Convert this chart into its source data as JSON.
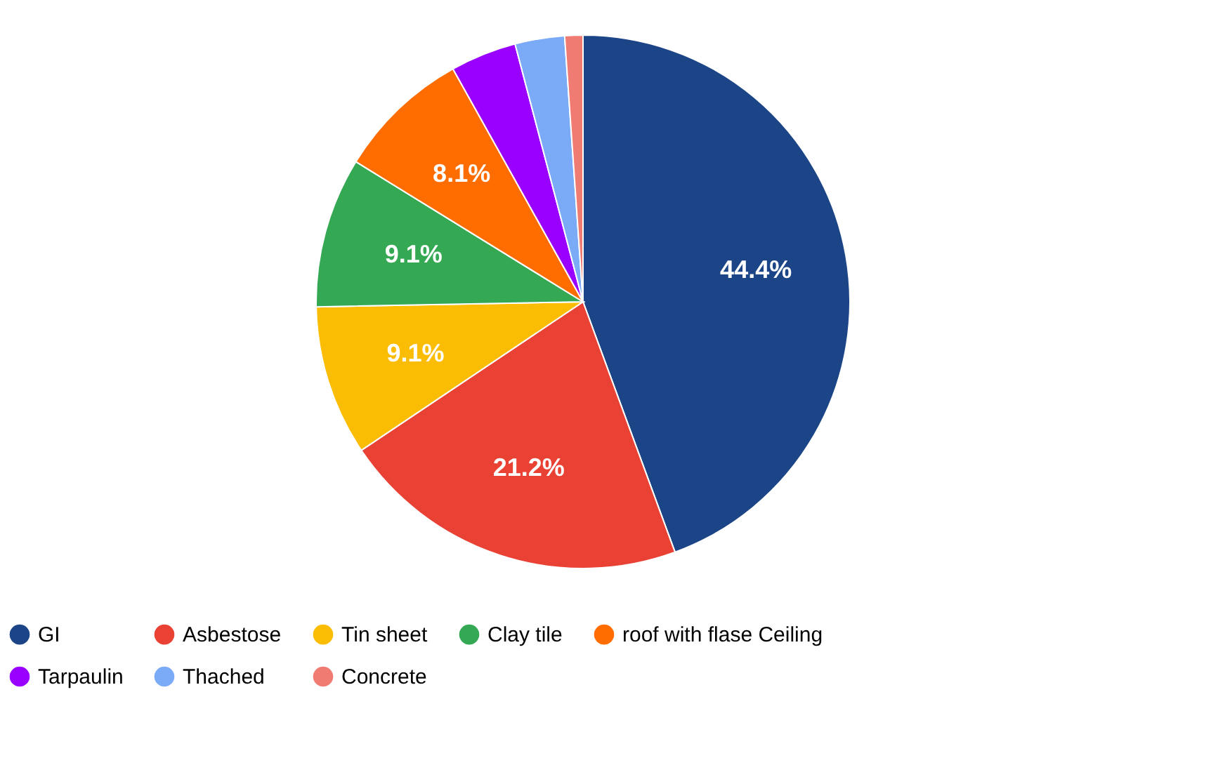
{
  "chart_data": {
    "type": "pie",
    "categories": [
      "GI",
      "Asbestose",
      "Tin sheet",
      "Clay tile",
      "roof with flase Ceiling",
      "Tarpaulin",
      "Thached",
      "Concrete"
    ],
    "values": [
      44.4,
      21.2,
      9.1,
      9.1,
      8.1,
      4.0,
      3.0,
      1.1
    ],
    "value_labels": [
      "44.4%",
      "21.2%",
      "9.1%",
      "9.1%",
      "8.1%",
      null,
      null,
      null
    ],
    "colors": [
      "#1c4587",
      "#e94235",
      "#fbbc04",
      "#34a853",
      "#ff6d01",
      "#9900ff",
      "#7baaf7",
      "#f07b72"
    ],
    "legend": "bottom"
  }
}
